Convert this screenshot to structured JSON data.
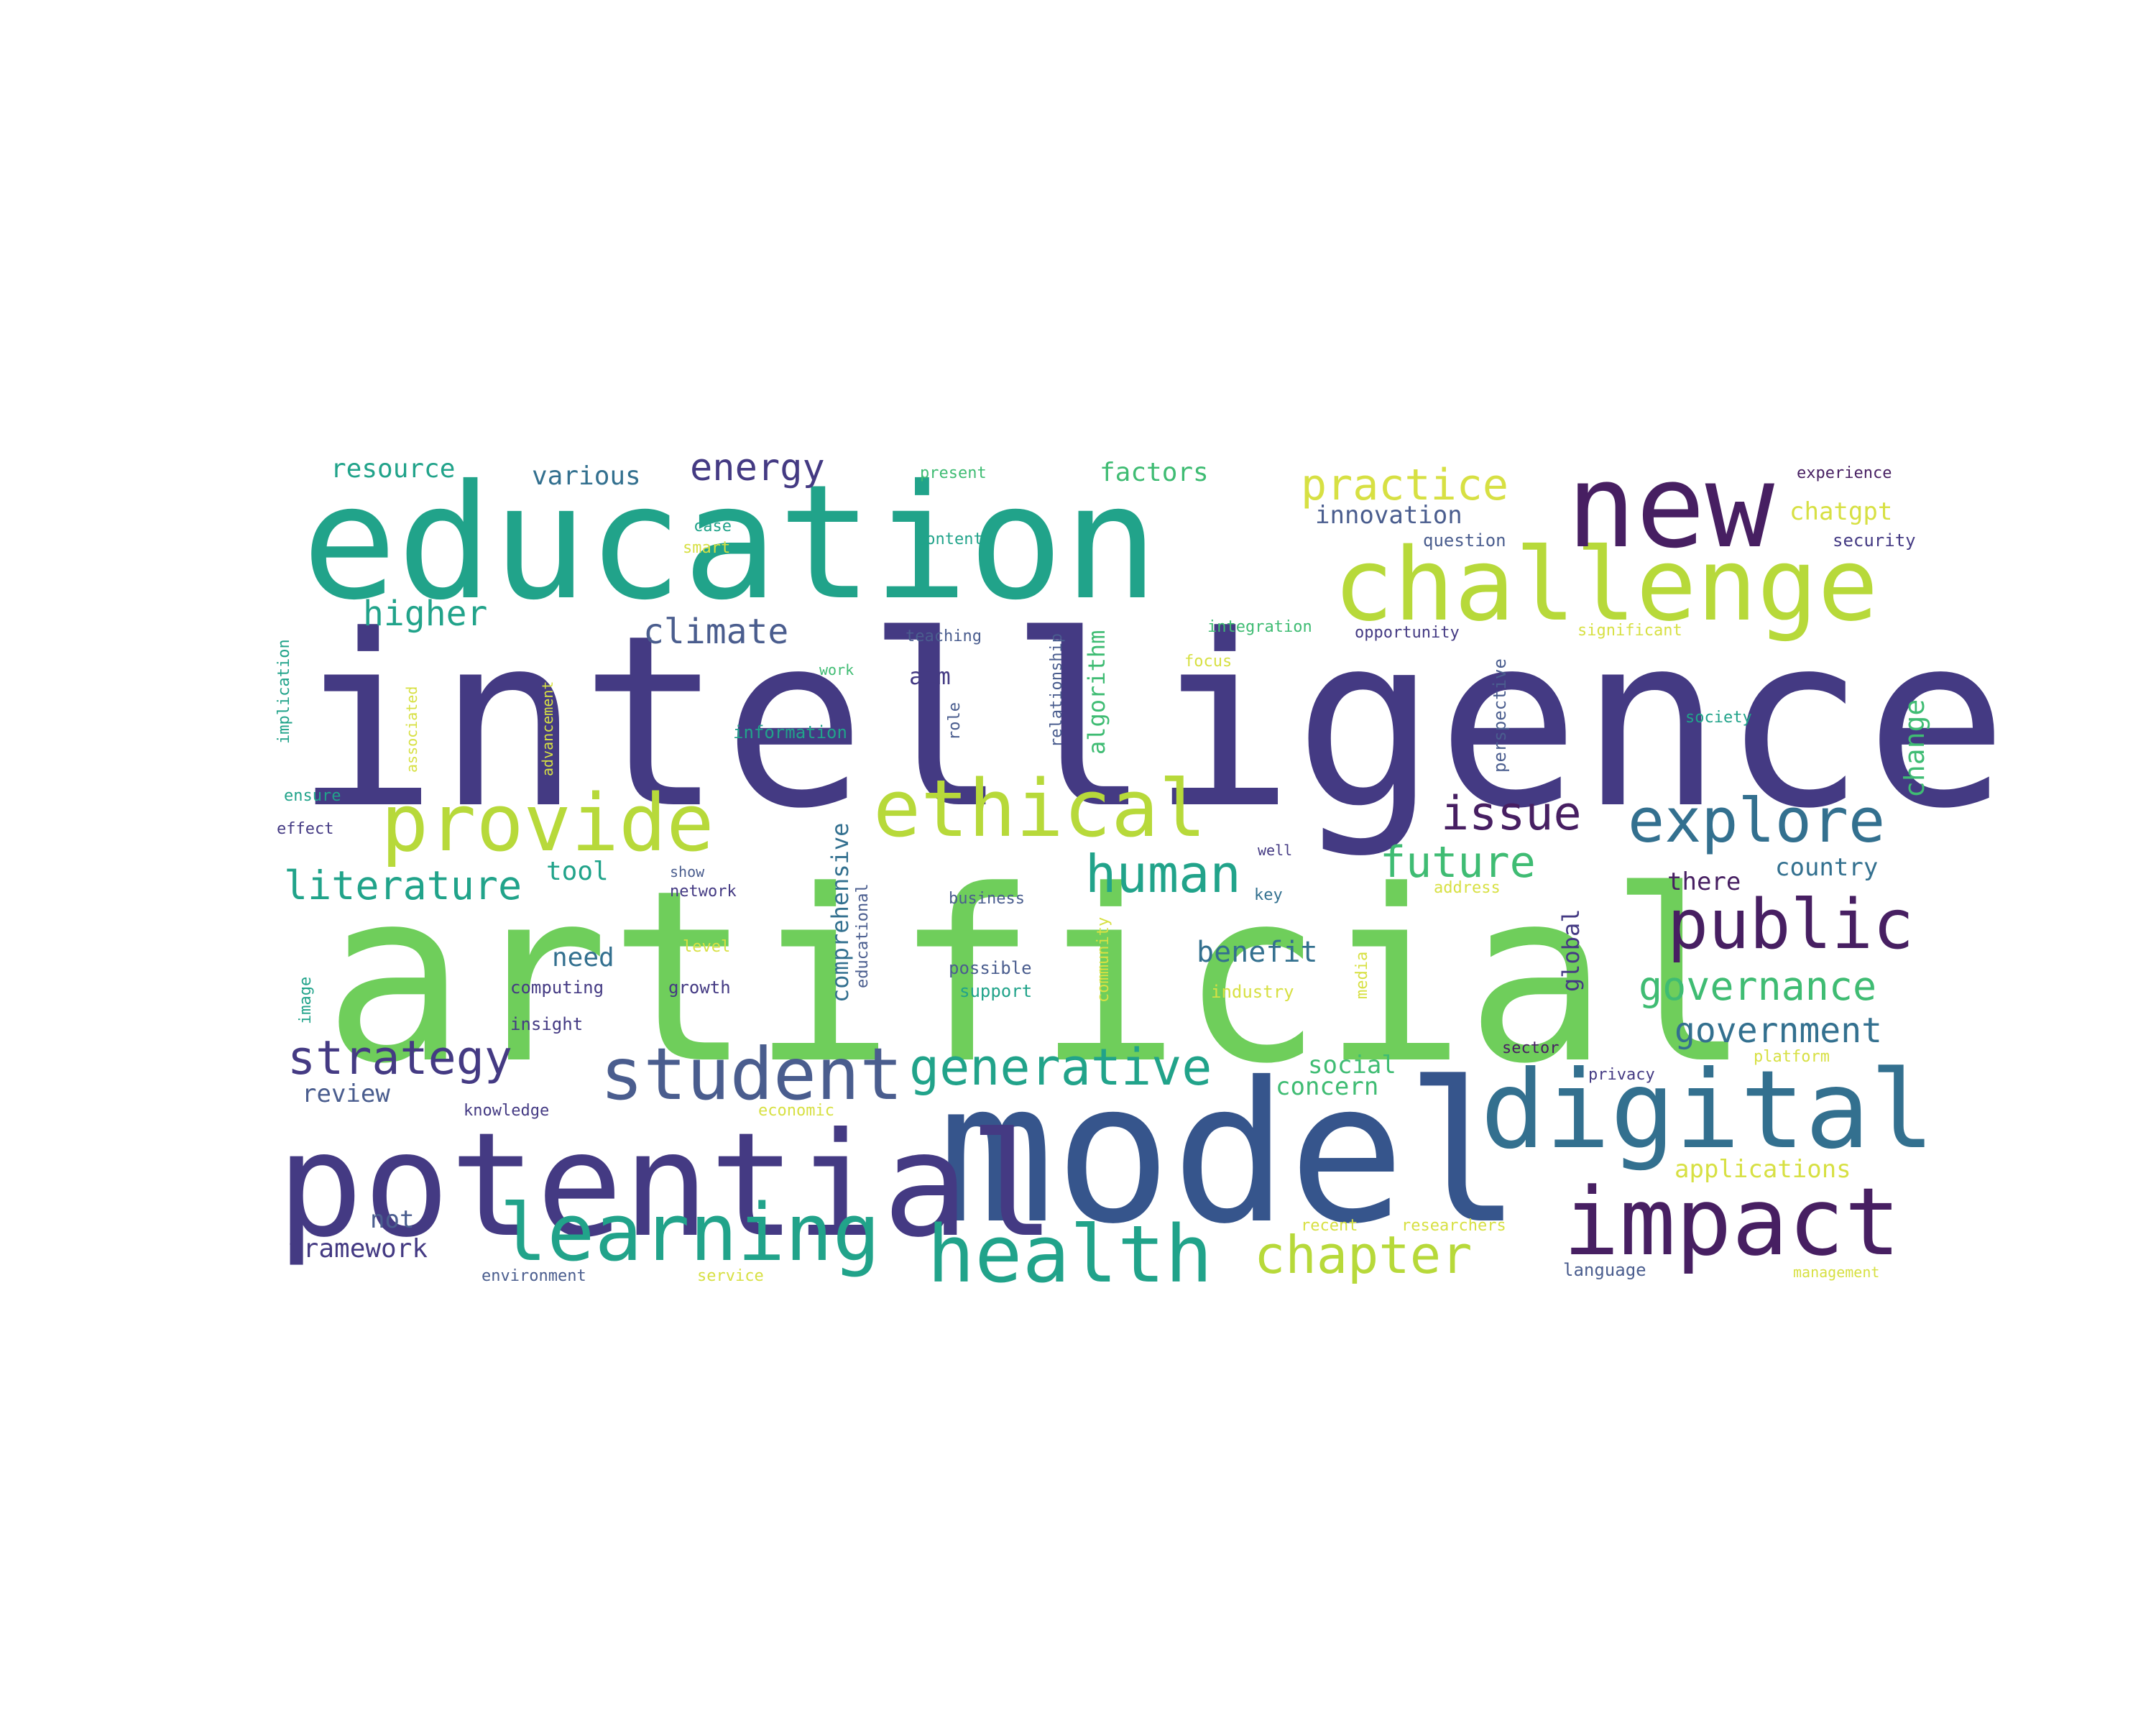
{
  "palette": {
    "green": "#6fce5b",
    "teal": "#21a38a",
    "indigo": "#443a83",
    "navy": "#36558c",
    "lime": "#b7d93a",
    "purple": "#471f62",
    "blue": "#33708f",
    "yellow": "#d7e043",
    "mint": "#3fbc73",
    "slate": "#4a5d8e"
  },
  "words": [
    {
      "key": "artificial",
      "text": "artificial",
      "color": "green"
    },
    {
      "key": "intelligence",
      "text": "intelligence",
      "color": "indigo"
    },
    {
      "key": "education",
      "text": "education",
      "color": "teal"
    },
    {
      "key": "model",
      "text": "model",
      "color": "navy"
    },
    {
      "key": "potential",
      "text": "potential",
      "color": "indigo"
    },
    {
      "key": "challenge",
      "text": "challenge",
      "color": "lime"
    },
    {
      "key": "new",
      "text": "new",
      "color": "purple"
    },
    {
      "key": "digital",
      "text": "digital",
      "color": "blue"
    },
    {
      "key": "impact",
      "text": "impact",
      "color": "purple"
    },
    {
      "key": "provide",
      "text": "provide",
      "color": "lime"
    },
    {
      "key": "ethical",
      "text": "ethical",
      "color": "lime"
    },
    {
      "key": "learning",
      "text": "learning",
      "color": "teal"
    },
    {
      "key": "health",
      "text": "health",
      "color": "teal"
    },
    {
      "key": "student",
      "text": "student",
      "color": "slate"
    },
    {
      "key": "public",
      "text": "public",
      "color": "purple"
    },
    {
      "key": "explore",
      "text": "explore",
      "color": "blue"
    },
    {
      "key": "generative",
      "text": "generative",
      "color": "teal"
    },
    {
      "key": "human",
      "text": "human",
      "color": "teal"
    },
    {
      "key": "chapter",
      "text": "chapter",
      "color": "lime"
    },
    {
      "key": "strategy",
      "text": "strategy",
      "color": "indigo"
    },
    {
      "key": "practice",
      "text": "practice",
      "color": "yellow"
    },
    {
      "key": "literature",
      "text": "literature",
      "color": "teal"
    },
    {
      "key": "governance",
      "text": "governance",
      "color": "mint"
    },
    {
      "key": "issue",
      "text": "issue",
      "color": "purple"
    },
    {
      "key": "future",
      "text": "future",
      "color": "mint"
    },
    {
      "key": "energy",
      "text": "energy",
      "color": "indigo"
    },
    {
      "key": "climate",
      "text": "climate",
      "color": "slate"
    },
    {
      "key": "higher",
      "text": "higher",
      "color": "teal"
    },
    {
      "key": "government",
      "text": "government",
      "color": "blue"
    },
    {
      "key": "benefit",
      "text": "benefit",
      "color": "blue"
    },
    {
      "key": "framework",
      "text": "framework",
      "color": "indigo"
    },
    {
      "key": "resource",
      "text": "resource",
      "color": "teal"
    },
    {
      "key": "various",
      "text": "various",
      "color": "blue"
    },
    {
      "key": "factors",
      "text": "factors",
      "color": "mint"
    },
    {
      "key": "innovation",
      "text": "innovation",
      "color": "slate"
    },
    {
      "key": "chatgpt",
      "text": "chatgpt",
      "color": "yellow"
    },
    {
      "key": "tool",
      "text": "tool",
      "color": "teal"
    },
    {
      "key": "need",
      "text": "need",
      "color": "blue"
    },
    {
      "key": "review",
      "text": "review",
      "color": "slate"
    },
    {
      "key": "not",
      "text": "not",
      "color": "slate"
    },
    {
      "key": "there",
      "text": "there",
      "color": "purple"
    },
    {
      "key": "country",
      "text": "country",
      "color": "blue"
    },
    {
      "key": "social",
      "text": "social",
      "color": "mint"
    },
    {
      "key": "concern",
      "text": "concern",
      "color": "mint"
    },
    {
      "key": "applications",
      "text": "applications",
      "color": "yellow"
    },
    {
      "key": "aim",
      "text": "aim",
      "color": "indigo"
    },
    {
      "key": "experience",
      "text": "experience",
      "color": "purple"
    },
    {
      "key": "present",
      "text": "present",
      "color": "mint"
    },
    {
      "key": "case",
      "text": "case",
      "color": "teal"
    },
    {
      "key": "smart",
      "text": "smart",
      "color": "yellow"
    },
    {
      "key": "content",
      "text": "content",
      "color": "teal"
    },
    {
      "key": "question",
      "text": "question",
      "color": "slate"
    },
    {
      "key": "security",
      "text": "security",
      "color": "indigo"
    },
    {
      "key": "teaching",
      "text": "teaching",
      "color": "slate"
    },
    {
      "key": "integration",
      "text": "integration",
      "color": "mint"
    },
    {
      "key": "opportunity",
      "text": "opportunity",
      "color": "indigo"
    },
    {
      "key": "significant",
      "text": "significant",
      "color": "yellow"
    },
    {
      "key": "work",
      "text": "work",
      "color": "mint"
    },
    {
      "key": "focus",
      "text": "focus",
      "color": "yellow"
    },
    {
      "key": "information",
      "text": "information",
      "color": "teal"
    },
    {
      "key": "society",
      "text": "society",
      "color": "teal"
    },
    {
      "key": "ensure",
      "text": "ensure",
      "color": "teal"
    },
    {
      "key": "effect",
      "text": "effect",
      "color": "indigo"
    },
    {
      "key": "well",
      "text": "well",
      "color": "indigo"
    },
    {
      "key": "show",
      "text": "show",
      "color": "slate"
    },
    {
      "key": "network",
      "text": "network",
      "color": "indigo"
    },
    {
      "key": "business",
      "text": "business",
      "color": "slate"
    },
    {
      "key": "key",
      "text": "key",
      "color": "blue"
    },
    {
      "key": "address",
      "text": "address",
      "color": "yellow"
    },
    {
      "key": "level",
      "text": "level",
      "color": "yellow"
    },
    {
      "key": "possible",
      "text": "possible",
      "color": "slate"
    },
    {
      "key": "computing",
      "text": "computing",
      "color": "indigo"
    },
    {
      "key": "growth",
      "text": "growth",
      "color": "indigo"
    },
    {
      "key": "support",
      "text": "support",
      "color": "teal"
    },
    {
      "key": "industry",
      "text": "industry",
      "color": "yellow"
    },
    {
      "key": "insight",
      "text": "insight",
      "color": "indigo"
    },
    {
      "key": "sector",
      "text": "sector",
      "color": "purple"
    },
    {
      "key": "privacy",
      "text": "privacy",
      "color": "indigo"
    },
    {
      "key": "platform",
      "text": "platform",
      "color": "yellow"
    },
    {
      "key": "knowledge",
      "text": "knowledge",
      "color": "indigo"
    },
    {
      "key": "economic",
      "text": "economic",
      "color": "yellow"
    },
    {
      "key": "recent",
      "text": "recent",
      "color": "yellow"
    },
    {
      "key": "researchers",
      "text": "researchers",
      "color": "yellow"
    },
    {
      "key": "environment",
      "text": "environment",
      "color": "slate"
    },
    {
      "key": "service",
      "text": "service",
      "color": "yellow"
    },
    {
      "key": "language",
      "text": "language",
      "color": "slate"
    },
    {
      "key": "management",
      "text": "management",
      "color": "yellow"
    },
    {
      "key": "implication",
      "text": "implication",
      "color": "teal"
    },
    {
      "key": "associated",
      "text": "associated",
      "color": "yellow"
    },
    {
      "key": "advancement",
      "text": "advancement",
      "color": "yellow"
    },
    {
      "key": "role",
      "text": "role",
      "color": "slate"
    },
    {
      "key": "relationship",
      "text": "relationship",
      "color": "slate"
    },
    {
      "key": "algorithm",
      "text": "algorithm",
      "color": "mint"
    },
    {
      "key": "perspective",
      "text": "perspective",
      "color": "slate"
    },
    {
      "key": "change",
      "text": "change",
      "color": "mint"
    },
    {
      "key": "comprehensive",
      "text": "comprehensive",
      "color": "blue"
    },
    {
      "key": "educational",
      "text": "educational",
      "color": "slate"
    },
    {
      "key": "community",
      "text": "community",
      "color": "yellow"
    },
    {
      "key": "media",
      "text": "media",
      "color": "yellow"
    },
    {
      "key": "global",
      "text": "global",
      "color": "indigo"
    },
    {
      "key": "image",
      "text": "image",
      "color": "teal"
    }
  ]
}
